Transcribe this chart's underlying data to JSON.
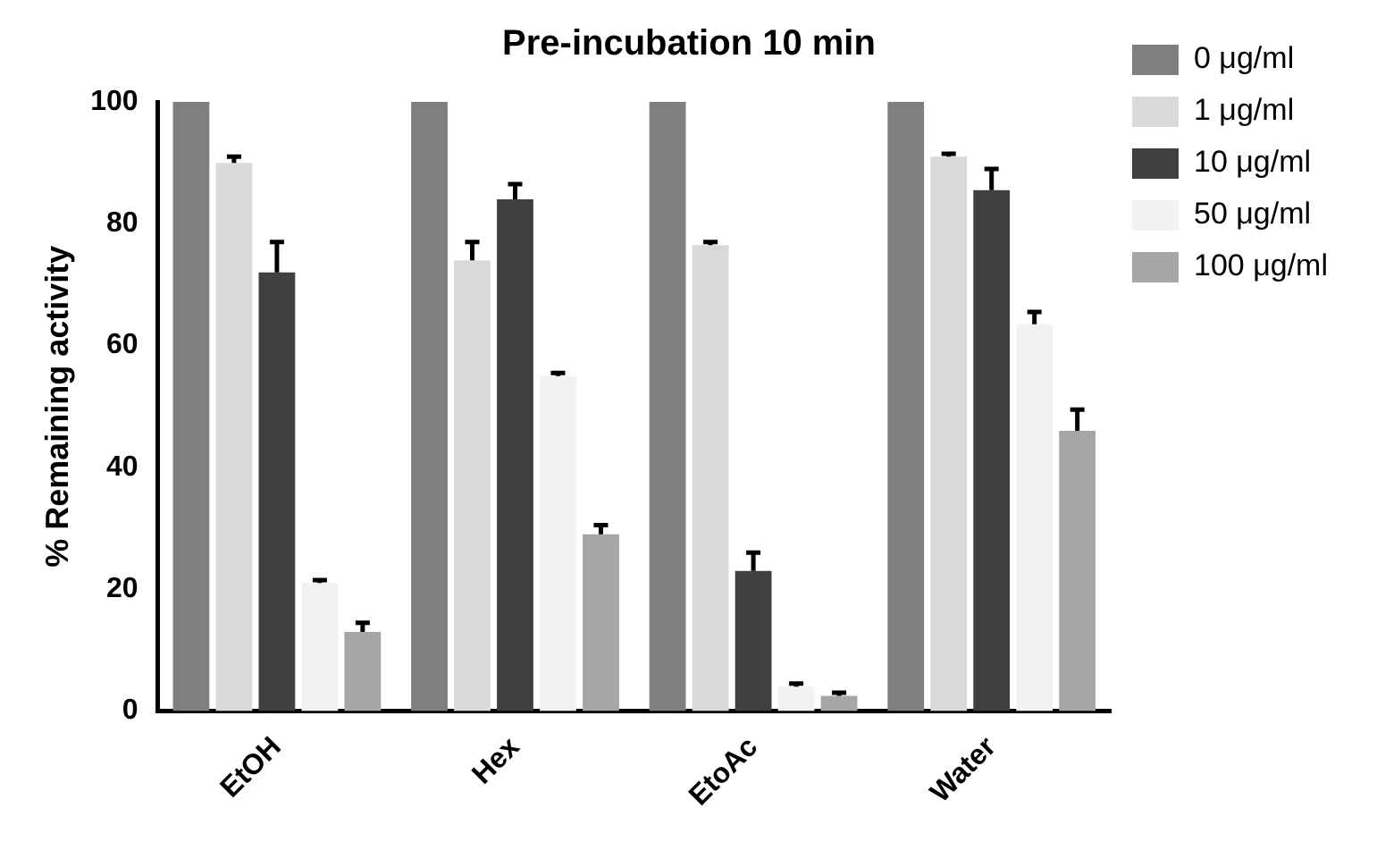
{
  "chart_data": {
    "type": "bar",
    "title": "Pre-incubation 10 min",
    "ylabel": "% Remaining activity",
    "categories": [
      "EtOH",
      "Hex",
      "EtoAc",
      "Water"
    ],
    "series": [
      {
        "name": "0 μg/ml",
        "color": "#7f7f7f",
        "values": [
          100,
          100,
          100,
          100
        ]
      },
      {
        "name": "1 μg/ml",
        "color": "#d9d9d9",
        "values": [
          90,
          74,
          76.5,
          91
        ],
        "errors": [
          1,
          3,
          0.5,
          0.5
        ]
      },
      {
        "name": "10 μg/ml",
        "color": "#404040",
        "values": [
          72,
          84,
          23,
          85.5
        ],
        "errors": [
          5,
          2.5,
          3,
          3.5
        ]
      },
      {
        "name": "50 μg/ml",
        "color": "#f2f2f2",
        "values": [
          21,
          55,
          4,
          63.5
        ],
        "errors": [
          0.5,
          0.5,
          0.5,
          2
        ]
      },
      {
        "name": "100 μg/ml",
        "color": "#a6a6a6",
        "values": [
          13,
          29,
          2.5,
          46
        ],
        "errors": [
          1.5,
          1.5,
          0.5,
          3.5
        ]
      }
    ],
    "ylim": [
      0,
      100
    ],
    "yticks": [
      0,
      20,
      40,
      60,
      80,
      100
    ],
    "grid": false,
    "legend": "right"
  }
}
